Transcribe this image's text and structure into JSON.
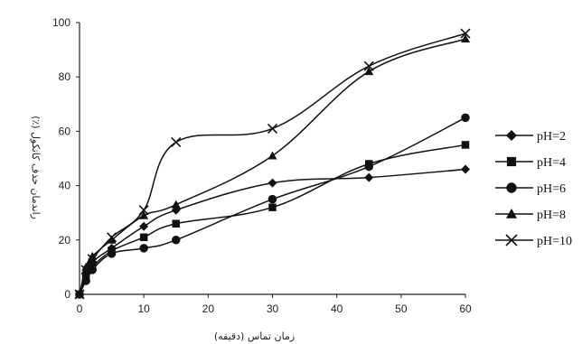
{
  "chart_data": {
    "type": "line",
    "title": "",
    "xlabel": "زمان تماس (دقیقه)",
    "ylabel": "راندمان حذف کاتکول (٪)",
    "xlim": [
      0,
      60
    ],
    "ylim": [
      0,
      100
    ],
    "x_ticks": [
      "0",
      "10",
      "20",
      "30",
      "40",
      "50",
      "60"
    ],
    "y_ticks": [
      "0",
      "20",
      "40",
      "60",
      "80",
      "100"
    ],
    "grid": false,
    "legend_position": "right",
    "series": [
      {
        "name": "pH=2",
        "marker": "diamond",
        "x": [
          0,
          1,
          2,
          5,
          10,
          15,
          30,
          45,
          60
        ],
        "y": [
          0,
          8,
          12,
          17,
          25,
          31,
          41,
          43,
          46
        ]
      },
      {
        "name": "pH=4",
        "marker": "square",
        "x": [
          0,
          1,
          2,
          5,
          10,
          15,
          30,
          45,
          60
        ],
        "y": [
          0,
          6,
          10,
          16,
          21,
          26,
          32,
          48,
          55
        ]
      },
      {
        "name": "pH=6",
        "marker": "circle",
        "x": [
          0,
          1,
          2,
          5,
          10,
          15,
          30,
          45,
          60
        ],
        "y": [
          0,
          5,
          9,
          15,
          17,
          20,
          35,
          47,
          65
        ]
      },
      {
        "name": "pH=8",
        "marker": "triangle",
        "x": [
          0,
          1,
          2,
          5,
          10,
          15,
          30,
          45,
          60
        ],
        "y": [
          0,
          10,
          14,
          20,
          29,
          33,
          51,
          82,
          94
        ]
      },
      {
        "name": "pH=10",
        "marker": "x",
        "x": [
          0,
          1,
          2,
          5,
          10,
          15,
          30,
          45,
          60
        ],
        "y": [
          0,
          9,
          13,
          21,
          31,
          56,
          61,
          84,
          96
        ]
      }
    ]
  }
}
